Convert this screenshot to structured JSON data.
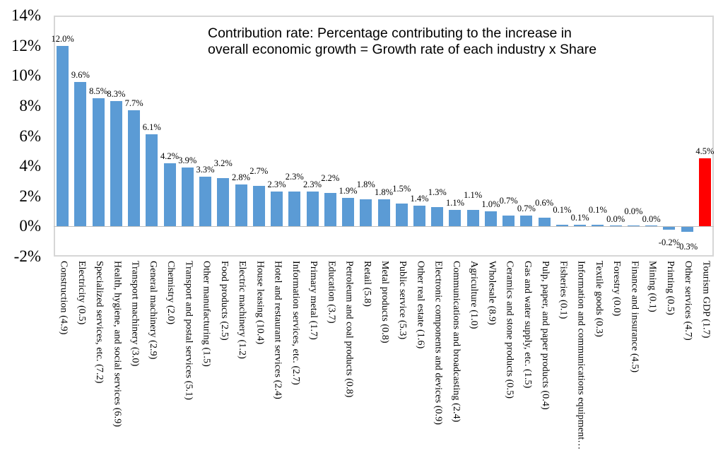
{
  "chart_data": {
    "type": "bar",
    "annotation_lines": [
      "Contribution rate: Percentage contributing to the increase in",
      "overall economic growth = Growth rate of each industry x Share"
    ],
    "yticks": [
      "14%",
      "12%",
      "10%",
      "8%",
      "6%",
      "4%",
      "2%",
      "0%",
      "-2%"
    ],
    "ytick_values": [
      14,
      12,
      10,
      8,
      6,
      4,
      2,
      0,
      -2
    ],
    "ylim": [
      -2,
      14
    ],
    "grid": false,
    "legend_position": "none",
    "categories": [
      "Construction (4.9)",
      "Electricity (0.5)",
      "Specialized services, etc. (7.2)",
      "Health, hygiene, and social services (6.9)",
      "Transport machinery (3.0)",
      "General machinery (2.9)",
      "Chemistry (2.0)",
      "Transport and postal services (5.1)",
      "Other manufacturing (1.5)",
      "Food products (2.5)",
      "Electric machinery (1.2)",
      "House leasing (10.4)",
      "Hotel and restaurant services (2.4)",
      "Information services, etc. (2.7)",
      "Primary metal (1.7)",
      "Education (3.7)",
      "Petroleum and coal products (0.8)",
      "Retail (5.8)",
      "Metal products (0.8)",
      "Public service (5.3)",
      "Other real estate (1.6)",
      "Electronic components and devices (0.9)",
      "Communications and broadcasting (2.4)",
      "Agriculture (1.0)",
      "Wholesale (8.9)",
      "Ceramics and stone products (0.5)",
      "Gas and water supply, etc. (1.5)",
      "Pulp, paper, and paper products (0.4)",
      "Fisheries (0.1)",
      "Information and communications equipment…",
      "Textile goods (0.3)",
      "Forestry (0.0)",
      "Finance and insurance (4.5)",
      "Mining (0.1)",
      "Printing (0.5)",
      "Other services (4.7)",
      "Tourism GDP (1.7)"
    ],
    "values": [
      12.0,
      9.6,
      8.5,
      8.3,
      7.7,
      6.1,
      4.2,
      3.9,
      3.3,
      3.2,
      2.8,
      2.7,
      2.3,
      2.3,
      2.3,
      2.2,
      1.9,
      1.8,
      1.8,
      1.5,
      1.4,
      1.3,
      1.1,
      1.1,
      1.0,
      0.7,
      0.7,
      0.6,
      0.1,
      0.1,
      0.1,
      0.0,
      0.0,
      0.0,
      -0.2,
      -0.3,
      4.5
    ],
    "value_labels": [
      "12.0%",
      "9.6%",
      "8.5%",
      "8.3%",
      "7.7%",
      "6.1%",
      "4.2%",
      "3.9%",
      "3.3%",
      "3.2%",
      "2.8%",
      "2.7%",
      "2.3%",
      "2.3%",
      "2.3%",
      "2.2%",
      "1.9%",
      "1.8%",
      "1.8%",
      "1.5%",
      "1.4%",
      "1.3%",
      "1.1%",
      "1.1%",
      "1.0%",
      "0.7%",
      "0.7%",
      "0.6%",
      "0.1%",
      "0.1%",
      "0.1%",
      "0.0%",
      "0.0%",
      "0.0%",
      "-0.2%",
      "-0.3%",
      "4.5%"
    ],
    "highlight_index": 36,
    "colors": {
      "bar": "#5B9BD5",
      "highlight": "#FF0000",
      "axis_line": "#BFBFBF",
      "plot_border": "#D6D6D6",
      "text": "#000000"
    }
  }
}
